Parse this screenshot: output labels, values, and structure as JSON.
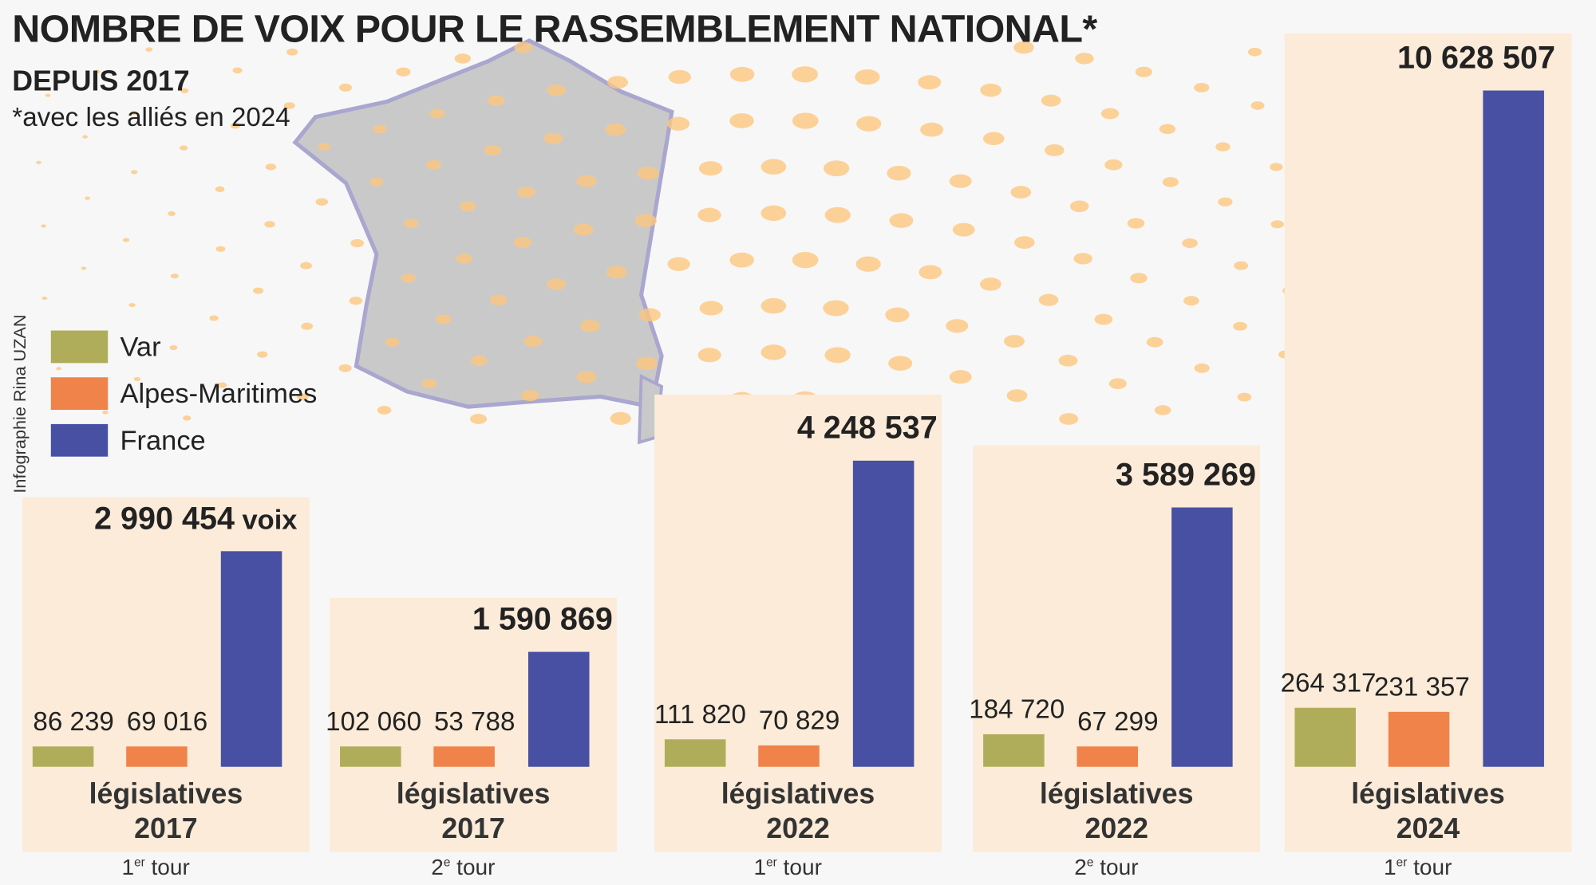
{
  "header": {
    "title": "NOMBRE DE VOIX POUR LE RASSEMBLEMENT NATIONAL*",
    "subtitle": "DEPUIS 2017",
    "note": "*avec les alliés en 2024",
    "credit": "Infographie Rina UZAN"
  },
  "colors": {
    "Var": "#b0ad5a",
    "Alpes-Maritimes": "#f0834a",
    "France": "#4850a3",
    "panel": "#fbebd8",
    "dots": "#fcc77f"
  },
  "chart_data": {
    "type": "bar",
    "title": "NOMBRE DE VOIX POUR LE RASSEMBLEMENT NATIONAL*",
    "subtitle": "DEPUIS 2017",
    "unit": "voix",
    "legend": {
      "placement": "left",
      "entries": [
        "Var",
        "Alpes-Maritimes",
        "France"
      ]
    },
    "grid": false,
    "categories": [
      {
        "line1": "législatives",
        "line2": "2017",
        "tour_num": "1",
        "tour_sup": "er",
        "tour_word": "tour"
      },
      {
        "line1": "législatives",
        "line2": "2017",
        "tour_num": "2",
        "tour_sup": "e",
        "tour_word": "tour"
      },
      {
        "line1": "législatives",
        "line2": "2022",
        "tour_num": "1",
        "tour_sup": "er",
        "tour_word": "tour"
      },
      {
        "line1": "législatives",
        "line2": "2022",
        "tour_num": "2",
        "tour_sup": "e",
        "tour_word": "tour"
      },
      {
        "line1": "législatives",
        "line2": "2024",
        "tour_num": "1",
        "tour_sup": "er",
        "tour_word": "tour"
      }
    ],
    "series": [
      {
        "name": "Var",
        "values": [
          86239,
          102060,
          111820,
          184720,
          264317
        ],
        "labels": [
          "86 239",
          "102 060",
          "111 820",
          "184 720",
          "264 317"
        ]
      },
      {
        "name": "Alpes-Maritimes",
        "values": [
          69016,
          53788,
          70829,
          67299,
          231357
        ],
        "labels": [
          "69 016",
          "53 788",
          "70 829",
          "67 299",
          "231 357"
        ]
      },
      {
        "name": "France",
        "values": [
          2990454,
          1590869,
          4248537,
          3589269,
          10628507
        ],
        "labels": [
          "2 990 454",
          "1 590 869",
          "4 248 537",
          "3 589 269",
          "10 628 507"
        ]
      }
    ],
    "first_label_suffix": "voix"
  }
}
